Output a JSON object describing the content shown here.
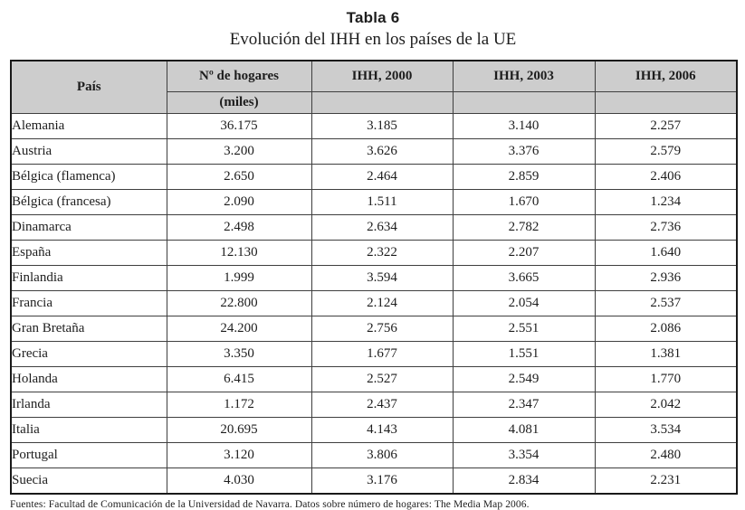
{
  "page": {
    "title": "Tabla 6",
    "subtitle": "Evolución del IHH en los países de la UE",
    "footnote": "Fuentes: Facultad de Comunicación de la Universidad de Navarra. Datos sobre número de hogares: The Media Map 2006."
  },
  "colors": {
    "header_bg": "#cdcdcd",
    "outer_border": "#191919",
    "inner_border": "#3f3f3f",
    "text": "#1d1d1d"
  },
  "table": {
    "headers": {
      "country": "País",
      "households": "Nº de hogares",
      "households_sub": "(miles)",
      "ihh2000": "IHH, 2000",
      "ihh2003": "IHH, 2003",
      "ihh2006": "IHH, 2006"
    },
    "rows": [
      {
        "country": "Alemania",
        "households": "36.175",
        "ihh2000": "3.185",
        "ihh2003": "3.140",
        "ihh2006": "2.257"
      },
      {
        "country": "Austria",
        "households": "3.200",
        "ihh2000": "3.626",
        "ihh2003": "3.376",
        "ihh2006": "2.579"
      },
      {
        "country": "Bélgica (flamenca)",
        "households": "2.650",
        "ihh2000": "2.464",
        "ihh2003": "2.859",
        "ihh2006": "2.406"
      },
      {
        "country": "Bélgica (francesa)",
        "households": "2.090",
        "ihh2000": "1.511",
        "ihh2003": "1.670",
        "ihh2006": "1.234"
      },
      {
        "country": "Dinamarca",
        "households": "2.498",
        "ihh2000": "2.634",
        "ihh2003": "2.782",
        "ihh2006": "2.736"
      },
      {
        "country": "España",
        "households": "12.130",
        "ihh2000": "2.322",
        "ihh2003": "2.207",
        "ihh2006": "1.640"
      },
      {
        "country": "Finlandia",
        "households": "1.999",
        "ihh2000": "3.594",
        "ihh2003": "3.665",
        "ihh2006": "2.936"
      },
      {
        "country": "Francia",
        "households": "22.800",
        "ihh2000": "2.124",
        "ihh2003": "2.054",
        "ihh2006": "2.537"
      },
      {
        "country": "Gran Bretaña",
        "households": "24.200",
        "ihh2000": "2.756",
        "ihh2003": "2.551",
        "ihh2006": "2.086"
      },
      {
        "country": "Grecia",
        "households": "3.350",
        "ihh2000": "1.677",
        "ihh2003": "1.551",
        "ihh2006": "1.381"
      },
      {
        "country": "Holanda",
        "households": "6.415",
        "ihh2000": "2.527",
        "ihh2003": "2.549",
        "ihh2006": "1.770"
      },
      {
        "country": "Irlanda",
        "households": "1.172",
        "ihh2000": "2.437",
        "ihh2003": "2.347",
        "ihh2006": "2.042"
      },
      {
        "country": "Italia",
        "households": "20.695",
        "ihh2000": "4.143",
        "ihh2003": "4.081",
        "ihh2006": "3.534"
      },
      {
        "country": "Portugal",
        "households": "3.120",
        "ihh2000": "3.806",
        "ihh2003": "3.354",
        "ihh2006": "2.480"
      },
      {
        "country": "Suecia",
        "households": "4.030",
        "ihh2000": "3.176",
        "ihh2003": "2.834",
        "ihh2006": "2.231"
      }
    ]
  }
}
